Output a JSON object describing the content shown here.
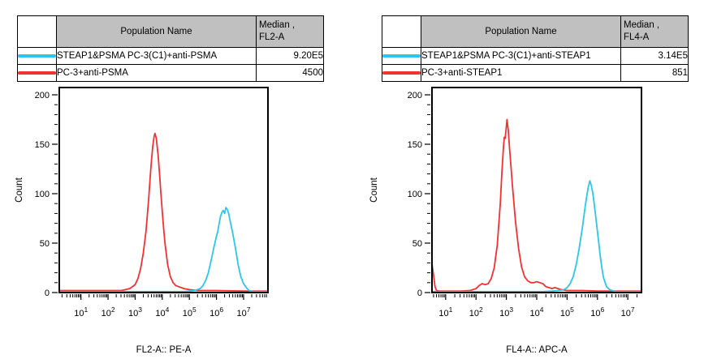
{
  "colors": {
    "cyan": "#2bc6ee",
    "red": "#f23131",
    "table_header_bg": "#c0c0c0",
    "axis": "#000000",
    "background": "#ffffff"
  },
  "panels": [
    {
      "table": {
        "header": {
          "population": "Population Name",
          "median_line1": "Median ,",
          "median_line2": "FL2-A"
        },
        "rows": [
          {
            "color_hex": "#2bc6ee",
            "name": "STEAP1&PSMA PC-3(C1)+anti-PSMA",
            "median": "9.20E5"
          },
          {
            "color_hex": "#f23131",
            "name": "PC-3+anti-PSMA",
            "median": "4500"
          }
        ]
      }
    },
    {
      "table": {
        "header": {
          "population": "Population Name",
          "median_line1": "Median ,",
          "median_line2": "FL4-A"
        },
        "rows": [
          {
            "color_hex": "#2bc6ee",
            "name": "STEAP1&PSMA PC-3(C1)+anti-STEAP1",
            "median": "3.14E5"
          },
          {
            "color_hex": "#f23131",
            "name": "PC-3+anti-STEAP1",
            "median": "851"
          }
        ]
      }
    }
  ],
  "chart_data": [
    {
      "type": "line",
      "title": "",
      "xlabel": "FL2-A:: PE-A",
      "ylabel": "Count",
      "x_scale": "log10",
      "x_range_log": [
        0.2,
        7.9
      ],
      "x_ticks_log": [
        1,
        2,
        3,
        4,
        5,
        6,
        7
      ],
      "x_tick_base": "10",
      "ylim": [
        0,
        200
      ],
      "y_ticks": [
        0,
        50,
        100,
        150,
        200
      ],
      "y_minor_step": 10,
      "grid": false,
      "legend_position": "table-above",
      "series": [
        {
          "name": "PC-3+anti-PSMA",
          "color": "#f23131",
          "median": "4500",
          "points_log10x_count": [
            [
              0.2,
              2
            ],
            [
              2.0,
              2
            ],
            [
              2.5,
              2
            ],
            [
              2.8,
              4
            ],
            [
              3.0,
              8
            ],
            [
              3.1,
              14
            ],
            [
              3.2,
              24
            ],
            [
              3.3,
              40
            ],
            [
              3.4,
              62
            ],
            [
              3.5,
              95
            ],
            [
              3.55,
              115
            ],
            [
              3.6,
              133
            ],
            [
              3.65,
              148
            ],
            [
              3.7,
              158
            ],
            [
              3.73,
              161
            ],
            [
              3.78,
              156
            ],
            [
              3.85,
              138
            ],
            [
              3.9,
              120
            ],
            [
              3.95,
              100
            ],
            [
              4.0,
              82
            ],
            [
              4.05,
              65
            ],
            [
              4.1,
              50
            ],
            [
              4.2,
              28
            ],
            [
              4.3,
              16
            ],
            [
              4.4,
              10
            ],
            [
              4.5,
              7
            ],
            [
              4.6,
              6
            ],
            [
              4.7,
              5
            ],
            [
              4.8,
              4
            ],
            [
              5.0,
              3
            ],
            [
              5.3,
              2
            ],
            [
              6.0,
              2
            ],
            [
              7.0,
              1.5
            ],
            [
              7.9,
              1.5
            ]
          ]
        },
        {
          "name": "STEAP1&PSMA PC-3(C1)+anti-PSMA",
          "color": "#2bc6ee",
          "median": "9.20E5",
          "points_log10x_count": [
            [
              0.2,
              1
            ],
            [
              4.8,
              1
            ],
            [
              5.0,
              1.5
            ],
            [
              5.2,
              2
            ],
            [
              5.4,
              4
            ],
            [
              5.5,
              7
            ],
            [
              5.6,
              12
            ],
            [
              5.7,
              20
            ],
            [
              5.8,
              32
            ],
            [
              5.9,
              45
            ],
            [
              6.0,
              57
            ],
            [
              6.05,
              62
            ],
            [
              6.1,
              70
            ],
            [
              6.15,
              77
            ],
            [
              6.2,
              81
            ],
            [
              6.25,
              83
            ],
            [
              6.3,
              80
            ],
            [
              6.35,
              86
            ],
            [
              6.4,
              84
            ],
            [
              6.45,
              80
            ],
            [
              6.5,
              73
            ],
            [
              6.6,
              60
            ],
            [
              6.7,
              45
            ],
            [
              6.8,
              28
            ],
            [
              6.9,
              16
            ],
            [
              7.0,
              9
            ],
            [
              7.1,
              5
            ],
            [
              7.2,
              2
            ],
            [
              7.35,
              1
            ],
            [
              7.9,
              1
            ]
          ]
        }
      ]
    },
    {
      "type": "line",
      "title": "",
      "xlabel": "FL4-A:: APC-A",
      "ylabel": "Count",
      "x_scale": "log10",
      "x_range_log": [
        0.55,
        7.45
      ],
      "x_ticks_log": [
        1,
        2,
        3,
        4,
        5,
        6,
        7
      ],
      "x_tick_base": "10",
      "ylim": [
        0,
        200
      ],
      "y_ticks": [
        0,
        50,
        100,
        150,
        200
      ],
      "y_minor_step": 10,
      "grid": false,
      "legend_position": "table-above",
      "series": [
        {
          "name": "PC-3+anti-STEAP1",
          "color": "#f23131",
          "median": "851",
          "points_log10x_count": [
            [
              0.55,
              29
            ],
            [
              0.6,
              18
            ],
            [
              0.65,
              6
            ],
            [
              0.7,
              2
            ],
            [
              0.8,
              1.5
            ],
            [
              1.5,
              1.5
            ],
            [
              1.8,
              2
            ],
            [
              2.0,
              4
            ],
            [
              2.1,
              7
            ],
            [
              2.2,
              9
            ],
            [
              2.3,
              8
            ],
            [
              2.4,
              9
            ],
            [
              2.5,
              14
            ],
            [
              2.6,
              25
            ],
            [
              2.7,
              48
            ],
            [
              2.8,
              90
            ],
            [
              2.85,
              120
            ],
            [
              2.9,
              145
            ],
            [
              2.93,
              157
            ],
            [
              2.96,
              156
            ],
            [
              3.0,
              168
            ],
            [
              3.02,
              175
            ],
            [
              3.06,
              165
            ],
            [
              3.1,
              148
            ],
            [
              3.15,
              128
            ],
            [
              3.2,
              108
            ],
            [
              3.3,
              72
            ],
            [
              3.4,
              45
            ],
            [
              3.5,
              26
            ],
            [
              3.6,
              16
            ],
            [
              3.7,
              12
            ],
            [
              3.8,
              10
            ],
            [
              3.9,
              10
            ],
            [
              4.0,
              11
            ],
            [
              4.1,
              10
            ],
            [
              4.2,
              9
            ],
            [
              4.3,
              6
            ],
            [
              4.4,
              5
            ],
            [
              4.5,
              4
            ],
            [
              4.6,
              5
            ],
            [
              4.7,
              4
            ],
            [
              4.8,
              3
            ],
            [
              5.0,
              2
            ],
            [
              5.5,
              2
            ],
            [
              6.0,
              1.5
            ],
            [
              7.45,
              1.5
            ]
          ]
        },
        {
          "name": "STEAP1&PSMA PC-3(C1)+anti-STEAP1",
          "color": "#2bc6ee",
          "median": "3.14E5",
          "points_log10x_count": [
            [
              0.55,
              1
            ],
            [
              4.2,
              1
            ],
            [
              4.5,
              1.5
            ],
            [
              4.7,
              2
            ],
            [
              4.9,
              3
            ],
            [
              5.0,
              5
            ],
            [
              5.1,
              9
            ],
            [
              5.2,
              16
            ],
            [
              5.3,
              28
            ],
            [
              5.4,
              45
            ],
            [
              5.5,
              65
            ],
            [
              5.6,
              88
            ],
            [
              5.65,
              98
            ],
            [
              5.7,
              107
            ],
            [
              5.75,
              113
            ],
            [
              5.8,
              108
            ],
            [
              5.85,
              100
            ],
            [
              5.9,
              88
            ],
            [
              6.0,
              62
            ],
            [
              6.1,
              35
            ],
            [
              6.15,
              24
            ],
            [
              6.2,
              15
            ],
            [
              6.3,
              6
            ],
            [
              6.4,
              3
            ],
            [
              6.5,
              2
            ],
            [
              6.6,
              1
            ],
            [
              7.45,
              1
            ]
          ]
        }
      ]
    }
  ]
}
